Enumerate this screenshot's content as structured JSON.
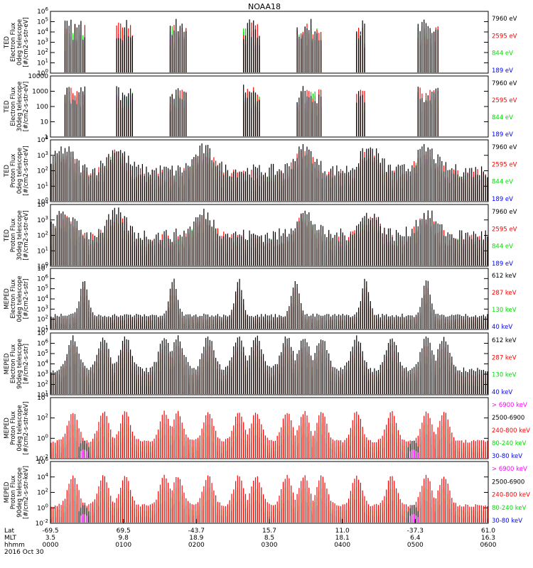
{
  "title": "NOAA18",
  "colors": {
    "black": "#000000",
    "red": "#ff0000",
    "green": "#00dd00",
    "blue": "#0000ff",
    "magenta": "#ff00ff"
  },
  "chart_data": [
    {
      "type": "line",
      "id": "ted-e-0",
      "ylabel": [
        "TED",
        "Electron Flux",
        "0deg telescope",
        "[#/cm2-s-str-eV]"
      ],
      "yscale": "log",
      "ylim_exp": [
        0,
        6
      ],
      "ytick_labels": [
        "10^0",
        "10^1",
        "10^2",
        "10^3",
        "10^4",
        "10^5",
        "10^6"
      ],
      "series": [
        {
          "name": "7960 eV",
          "color": "black"
        },
        {
          "name": "2595 eV",
          "color": "red"
        },
        {
          "name": "844 eV",
          "color": "green"
        },
        {
          "name": "189 eV",
          "color": "blue"
        }
      ]
    },
    {
      "type": "line",
      "id": "ted-e-30",
      "ylabel": [
        "TED",
        "Electron Flux",
        "30deg telescope",
        "[#/cm2-s-str-eV]"
      ],
      "yscale": "log",
      "ylim_exp": [
        0,
        4
      ],
      "ytick_labels": [
        "1",
        "10",
        "100",
        "1000",
        "10000"
      ],
      "series": [
        {
          "name": "7960 eV",
          "color": "black"
        },
        {
          "name": "2595 eV",
          "color": "red"
        },
        {
          "name": "844 eV",
          "color": "green"
        },
        {
          "name": "189 eV",
          "color": "blue"
        }
      ]
    },
    {
      "type": "line",
      "id": "ted-p-0",
      "ylabel": [
        "TED",
        "Proton Flux",
        "0deg telescope",
        "[#/cm2-s-str-eV]"
      ],
      "yscale": "log",
      "ylim_exp": [
        0,
        4
      ],
      "ytick_labels": [
        "10^0",
        "10^1",
        "10^2",
        "10^3",
        "10^4"
      ],
      "series": [
        {
          "name": "7960 eV",
          "color": "black"
        },
        {
          "name": "2595 eV",
          "color": "red"
        },
        {
          "name": "844 eV",
          "color": "green"
        },
        {
          "name": "189 eV",
          "color": "blue"
        }
      ]
    },
    {
      "type": "line",
      "id": "ted-p-30",
      "ylabel": [
        "TED",
        "Proton Flux",
        "30deg telescope",
        "[#/cm2-s-str-eV]"
      ],
      "yscale": "log",
      "ylim_exp": [
        0,
        4
      ],
      "ytick_labels": [
        "10^0",
        "10^1",
        "10^2",
        "10^3",
        "10^4"
      ],
      "series": [
        {
          "name": "7960 eV",
          "color": "black"
        },
        {
          "name": "2595 eV",
          "color": "red"
        },
        {
          "name": "844 eV",
          "color": "green"
        },
        {
          "name": "189 eV",
          "color": "blue"
        }
      ]
    },
    {
      "type": "line",
      "id": "meped-e-0",
      "ylabel": [
        "MEPED",
        "Electron Flux",
        "0deg telescope",
        "[#/cm2-s-str]"
      ],
      "yscale": "log",
      "ylim_exp": [
        1,
        7
      ],
      "ytick_labels": [
        "10^1",
        "10^2",
        "10^3",
        "10^4",
        "10^5",
        "10^6",
        "10^7"
      ],
      "series": [
        {
          "name": "612 keV",
          "color": "black"
        },
        {
          "name": "287 keV",
          "color": "red"
        },
        {
          "name": "130 keV",
          "color": "green"
        },
        {
          "name": "40 keV",
          "color": "blue"
        }
      ]
    },
    {
      "type": "line",
      "id": "meped-e-90",
      "ylabel": [
        "MEPED",
        "Electron Flux",
        "90deg telescope",
        "[#/cm2-s-str]"
      ],
      "yscale": "log",
      "ylim_exp": [
        1,
        7
      ],
      "ytick_labels": [
        "10^1",
        "10^2",
        "10^3",
        "10^4",
        "10^5",
        "10^6",
        "10^7"
      ],
      "series": [
        {
          "name": "612 keV",
          "color": "black"
        },
        {
          "name": "287 keV",
          "color": "red"
        },
        {
          "name": "130 keV",
          "color": "green"
        },
        {
          "name": "40 keV",
          "color": "blue"
        }
      ]
    },
    {
      "type": "line",
      "id": "meped-p-0",
      "ylabel": [
        "MEPED",
        "Proton Flux",
        "0deg telescope",
        "[#/cm2-s-str-keV]"
      ],
      "yscale": "log",
      "ylim_exp": [
        -2,
        5
      ],
      "ytick_labels": [
        "10^-2",
        "10^0",
        "10^2",
        "10^4"
      ],
      "series": [
        {
          "name": "> 6900 keV",
          "color": "magenta"
        },
        {
          "name": "2500-6900",
          "color": "black"
        },
        {
          "name": "240-800 keV",
          "color": "red"
        },
        {
          "name": "80-240 keV",
          "color": "green"
        },
        {
          "name": "30-80 keV",
          "color": "blue"
        }
      ]
    },
    {
      "type": "line",
      "id": "meped-p-90",
      "ylabel": [
        "MEPED",
        "Proton Flux",
        "90deg telescope",
        "[#/cm2-s-str-keV]"
      ],
      "yscale": "log",
      "ylim_exp": [
        -2,
        6
      ],
      "ytick_labels": [
        "10^-2",
        "10^0",
        "10^2",
        "10^4",
        "10^6"
      ],
      "series": [
        {
          "name": "> 6900 keV",
          "color": "magenta"
        },
        {
          "name": "2500-6900",
          "color": "black"
        },
        {
          "name": "240-800 keV",
          "color": "red"
        },
        {
          "name": "80-240 keV",
          "color": "green"
        },
        {
          "name": "30-80 keV",
          "color": "blue"
        }
      ]
    }
  ],
  "x_axis": {
    "row_labels": [
      "Lat",
      "MLT",
      "hhmm"
    ],
    "date": "2016 Oct 30",
    "columns": [
      {
        "lat": "-69.5",
        "mlt": "3.5",
        "time": "0000"
      },
      {
        "lat": "69.5",
        "mlt": "9.8",
        "time": "0100"
      },
      {
        "lat": "-43.7",
        "mlt": "18.9",
        "time": "0200"
      },
      {
        "lat": "15.7",
        "mlt": "8.5",
        "time": "0300"
      },
      {
        "lat": "11.0",
        "mlt": "18.1",
        "time": "0400"
      },
      {
        "lat": "-37.3",
        "mlt": "6.4",
        "time": "0500"
      },
      {
        "lat": "61.0",
        "mlt": "16.3",
        "time": "0600"
      }
    ]
  }
}
